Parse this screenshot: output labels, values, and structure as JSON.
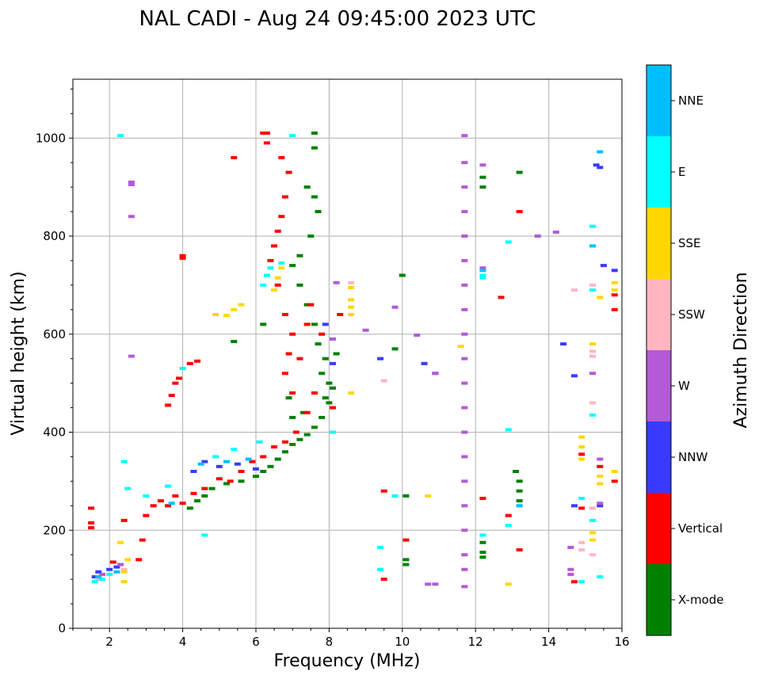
{
  "chart_data": {
    "type": "scatter",
    "title": "NAL CADI - Aug 24 09:45:00 2023 UTC",
    "xlabel": "Frequency (MHz)",
    "ylabel": "Virtual height (km)",
    "xlim": [
      1,
      16
    ],
    "ylim": [
      0,
      1120
    ],
    "xticks": [
      2,
      4,
      6,
      8,
      10,
      12,
      14,
      16
    ],
    "yticks": [
      0,
      200,
      400,
      600,
      800,
      1000
    ],
    "grid": true,
    "colorbar": {
      "title": "Azimuth Direction",
      "entries": [
        {
          "label": "X-mode",
          "color": "#008000"
        },
        {
          "label": "Vertical",
          "color": "#ff0000"
        },
        {
          "label": "NNW",
          "color": "#3a3aff"
        },
        {
          "label": "W",
          "color": "#b35ad6"
        },
        {
          "label": "SSW",
          "color": "#ffb6c1"
        },
        {
          "label": "SSE",
          "color": "#ffd700"
        },
        {
          "label": "E",
          "color": "#00ffff"
        },
        {
          "label": "NNE",
          "color": "#00bfff"
        }
      ]
    },
    "series": [
      {
        "name": "X-mode",
        "points": [
          [
            6.4,
            330
          ],
          [
            6.6,
            345
          ],
          [
            6.8,
            360
          ],
          [
            7.0,
            375
          ],
          [
            7.2,
            385
          ],
          [
            7.4,
            395
          ],
          [
            7.6,
            410
          ],
          [
            7.8,
            430
          ],
          [
            8.0,
            460
          ],
          [
            8.1,
            490
          ],
          [
            7.8,
            520
          ],
          [
            7.9,
            550
          ],
          [
            7.7,
            580
          ],
          [
            7.6,
            620
          ],
          [
            7.4,
            660
          ],
          [
            7.2,
            700
          ],
          [
            7.0,
            740
          ],
          [
            7.2,
            760
          ],
          [
            7.5,
            800
          ],
          [
            7.7,
            850
          ],
          [
            7.6,
            880
          ],
          [
            7.4,
            900
          ],
          [
            7.6,
            980
          ],
          [
            7.6,
            1010
          ],
          [
            6.2,
            320
          ],
          [
            6.0,
            310
          ],
          [
            5.6,
            300
          ],
          [
            5.2,
            295
          ],
          [
            4.8,
            285
          ],
          [
            4.6,
            270
          ],
          [
            4.4,
            260
          ],
          [
            4.2,
            245
          ],
          [
            6.2,
            620
          ],
          [
            5.4,
            585
          ],
          [
            10.0,
            720
          ],
          [
            9.8,
            570
          ],
          [
            10.1,
            270
          ],
          [
            10.1,
            140
          ],
          [
            10.1,
            130
          ],
          [
            12.2,
            920
          ],
          [
            12.2,
            900
          ],
          [
            12.2,
            175
          ],
          [
            12.2,
            155
          ],
          [
            12.2,
            145
          ],
          [
            13.2,
            930
          ],
          [
            13.2,
            300
          ],
          [
            13.2,
            280
          ],
          [
            13.2,
            260
          ],
          [
            13.1,
            320
          ],
          [
            8.2,
            560
          ],
          [
            8.0,
            500
          ],
          [
            7.9,
            470
          ],
          [
            7.3,
            440
          ],
          [
            7.0,
            430
          ],
          [
            6.9,
            470
          ]
        ]
      },
      {
        "name": "Vertical",
        "points": [
          [
            1.5,
            245
          ],
          [
            1.5,
            215
          ],
          [
            1.5,
            205
          ],
          [
            2.1,
            135
          ],
          [
            2.4,
            220
          ],
          [
            2.8,
            140
          ],
          [
            2.9,
            180
          ],
          [
            3.0,
            230
          ],
          [
            3.2,
            250
          ],
          [
            3.4,
            260
          ],
          [
            3.6,
            250
          ],
          [
            3.8,
            270
          ],
          [
            4.0,
            255
          ],
          [
            4.3,
            275
          ],
          [
            4.6,
            285
          ],
          [
            5.0,
            305
          ],
          [
            5.3,
            300
          ],
          [
            5.6,
            320
          ],
          [
            5.9,
            340
          ],
          [
            6.2,
            350
          ],
          [
            6.5,
            370
          ],
          [
            6.8,
            380
          ],
          [
            7.1,
            400
          ],
          [
            7.4,
            440
          ],
          [
            7.0,
            480
          ],
          [
            6.8,
            520
          ],
          [
            6.9,
            560
          ],
          [
            7.0,
            600
          ],
          [
            6.8,
            640
          ],
          [
            6.6,
            700
          ],
          [
            6.4,
            750
          ],
          [
            6.5,
            780
          ],
          [
            6.6,
            810
          ],
          [
            6.7,
            840
          ],
          [
            6.8,
            880
          ],
          [
            6.9,
            930
          ],
          [
            6.7,
            960
          ],
          [
            6.3,
            990
          ],
          [
            6.3,
            1010
          ],
          [
            6.2,
            1010
          ],
          [
            4.0,
            760
          ],
          [
            4.0,
            755
          ],
          [
            3.7,
            475
          ],
          [
            3.6,
            455
          ],
          [
            3.8,
            500
          ],
          [
            3.9,
            510
          ],
          [
            4.2,
            540
          ],
          [
            4.4,
            545
          ],
          [
            7.4,
            620
          ],
          [
            7.2,
            550
          ],
          [
            7.6,
            480
          ],
          [
            5.4,
            960
          ],
          [
            9.5,
            280
          ],
          [
            9.5,
            100
          ],
          [
            10.1,
            180
          ],
          [
            12.2,
            265
          ],
          [
            12.7,
            675
          ],
          [
            13.2,
            850
          ],
          [
            13.2,
            160
          ],
          [
            12.9,
            230
          ],
          [
            14.9,
            245
          ],
          [
            14.9,
            355
          ],
          [
            15.4,
            330
          ],
          [
            15.8,
            680
          ],
          [
            15.8,
            650
          ],
          [
            15.8,
            300
          ],
          [
            14.7,
            95
          ],
          [
            8.3,
            640
          ],
          [
            8.1,
            450
          ],
          [
            7.8,
            600
          ],
          [
            7.5,
            660
          ]
        ]
      },
      {
        "name": "NNW",
        "points": [
          [
            1.6,
            105
          ],
          [
            1.7,
            115
          ],
          [
            2.0,
            120
          ],
          [
            2.2,
            125
          ],
          [
            4.3,
            320
          ],
          [
            4.6,
            340
          ],
          [
            5.0,
            330
          ],
          [
            5.5,
            335
          ],
          [
            6.0,
            325
          ],
          [
            7.9,
            620
          ],
          [
            8.1,
            540
          ],
          [
            9.4,
            550
          ],
          [
            10.6,
            540
          ],
          [
            10.9,
            520
          ],
          [
            14.4,
            580
          ],
          [
            14.7,
            515
          ],
          [
            14.7,
            250
          ],
          [
            15.4,
            250
          ],
          [
            15.5,
            740
          ],
          [
            15.8,
            730
          ],
          [
            15.3,
            945
          ],
          [
            15.4,
            940
          ]
        ]
      },
      {
        "name": "W",
        "points": [
          [
            1.8,
            110
          ],
          [
            2.3,
            130
          ],
          [
            2.6,
            910
          ],
          [
            2.6,
            905
          ],
          [
            2.6,
            840
          ],
          [
            2.6,
            555
          ],
          [
            8.2,
            705
          ],
          [
            8.1,
            590
          ],
          [
            9.0,
            608
          ],
          [
            10.4,
            598
          ],
          [
            10.9,
            520
          ],
          [
            11.7,
            1005
          ],
          [
            11.7,
            950
          ],
          [
            11.7,
            900
          ],
          [
            11.7,
            850
          ],
          [
            11.7,
            800
          ],
          [
            11.7,
            750
          ],
          [
            11.7,
            700
          ],
          [
            11.7,
            650
          ],
          [
            11.7,
            600
          ],
          [
            11.7,
            550
          ],
          [
            11.7,
            500
          ],
          [
            11.7,
            450
          ],
          [
            11.7,
            400
          ],
          [
            11.7,
            350
          ],
          [
            11.7,
            300
          ],
          [
            11.7,
            250
          ],
          [
            11.7,
            200
          ],
          [
            11.7,
            150
          ],
          [
            11.7,
            120
          ],
          [
            11.7,
            85
          ],
          [
            12.2,
            735
          ],
          [
            12.2,
            945
          ],
          [
            13.7,
            800
          ],
          [
            14.2,
            808
          ],
          [
            14.6,
            165
          ],
          [
            14.6,
            120
          ],
          [
            14.6,
            110
          ],
          [
            15.2,
            520
          ],
          [
            15.4,
            345
          ],
          [
            15.4,
            255
          ],
          [
            10.7,
            90
          ],
          [
            10.9,
            90
          ],
          [
            9.8,
            655
          ]
        ]
      },
      {
        "name": "SSW",
        "points": [
          [
            1.7,
            100
          ],
          [
            2.4,
            120
          ],
          [
            8.6,
            705
          ],
          [
            9.5,
            505
          ],
          [
            14.9,
            175
          ],
          [
            14.9,
            160
          ],
          [
            15.2,
            555
          ],
          [
            15.2,
            565
          ],
          [
            15.2,
            460
          ],
          [
            15.2,
            700
          ],
          [
            14.7,
            690
          ],
          [
            15.2,
            245
          ],
          [
            15.2,
            150
          ]
        ]
      },
      {
        "name": "SSE",
        "points": [
          [
            2.4,
            95
          ],
          [
            2.4,
            115
          ],
          [
            2.3,
            175
          ],
          [
            2.5,
            140
          ],
          [
            4.9,
            640
          ],
          [
            5.2,
            638
          ],
          [
            5.4,
            650
          ],
          [
            5.6,
            660
          ],
          [
            6.5,
            690
          ],
          [
            6.6,
            715
          ],
          [
            6.7,
            735
          ],
          [
            8.6,
            695
          ],
          [
            8.6,
            670
          ],
          [
            8.6,
            655
          ],
          [
            8.6,
            640
          ],
          [
            8.6,
            480
          ],
          [
            11.6,
            575
          ],
          [
            10.7,
            270
          ],
          [
            12.9,
            90
          ],
          [
            14.9,
            390
          ],
          [
            14.9,
            370
          ],
          [
            14.9,
            345
          ],
          [
            15.2,
            580
          ],
          [
            15.2,
            195
          ],
          [
            15.2,
            180
          ],
          [
            15.4,
            675
          ],
          [
            15.4,
            310
          ],
          [
            15.4,
            295
          ],
          [
            15.8,
            705
          ],
          [
            15.8,
            690
          ],
          [
            15.8,
            320
          ]
        ]
      },
      {
        "name": "E",
        "points": [
          [
            1.6,
            95
          ],
          [
            1.8,
            100
          ],
          [
            2.0,
            110
          ],
          [
            2.4,
            340
          ],
          [
            2.5,
            285
          ],
          [
            3.0,
            270
          ],
          [
            3.6,
            290
          ],
          [
            4.0,
            530
          ],
          [
            4.6,
            190
          ],
          [
            4.9,
            350
          ],
          [
            5.4,
            365
          ],
          [
            6.1,
            380
          ],
          [
            6.2,
            700
          ],
          [
            6.3,
            720
          ],
          [
            6.4,
            735
          ],
          [
            6.7,
            745
          ],
          [
            12.2,
            720
          ],
          [
            12.2,
            715
          ],
          [
            12.2,
            190
          ],
          [
            12.9,
            788
          ],
          [
            12.9,
            405
          ],
          [
            12.9,
            210
          ],
          [
            14.9,
            265
          ],
          [
            14.9,
            95
          ],
          [
            15.2,
            820
          ],
          [
            15.2,
            690
          ],
          [
            15.2,
            435
          ],
          [
            15.2,
            220
          ],
          [
            15.4,
            105
          ],
          [
            9.4,
            165
          ],
          [
            9.4,
            120
          ],
          [
            9.8,
            270
          ],
          [
            8.1,
            400
          ],
          [
            2.3,
            1005
          ],
          [
            7.0,
            1005
          ]
        ]
      },
      {
        "name": "NNE",
        "points": [
          [
            1.7,
            105
          ],
          [
            2.2,
            115
          ],
          [
            3.7,
            255
          ],
          [
            4.5,
            335
          ],
          [
            5.2,
            340
          ],
          [
            5.8,
            345
          ],
          [
            12.2,
            730
          ],
          [
            13.2,
            250
          ],
          [
            15.4,
            972
          ],
          [
            15.2,
            780
          ]
        ]
      }
    ]
  }
}
